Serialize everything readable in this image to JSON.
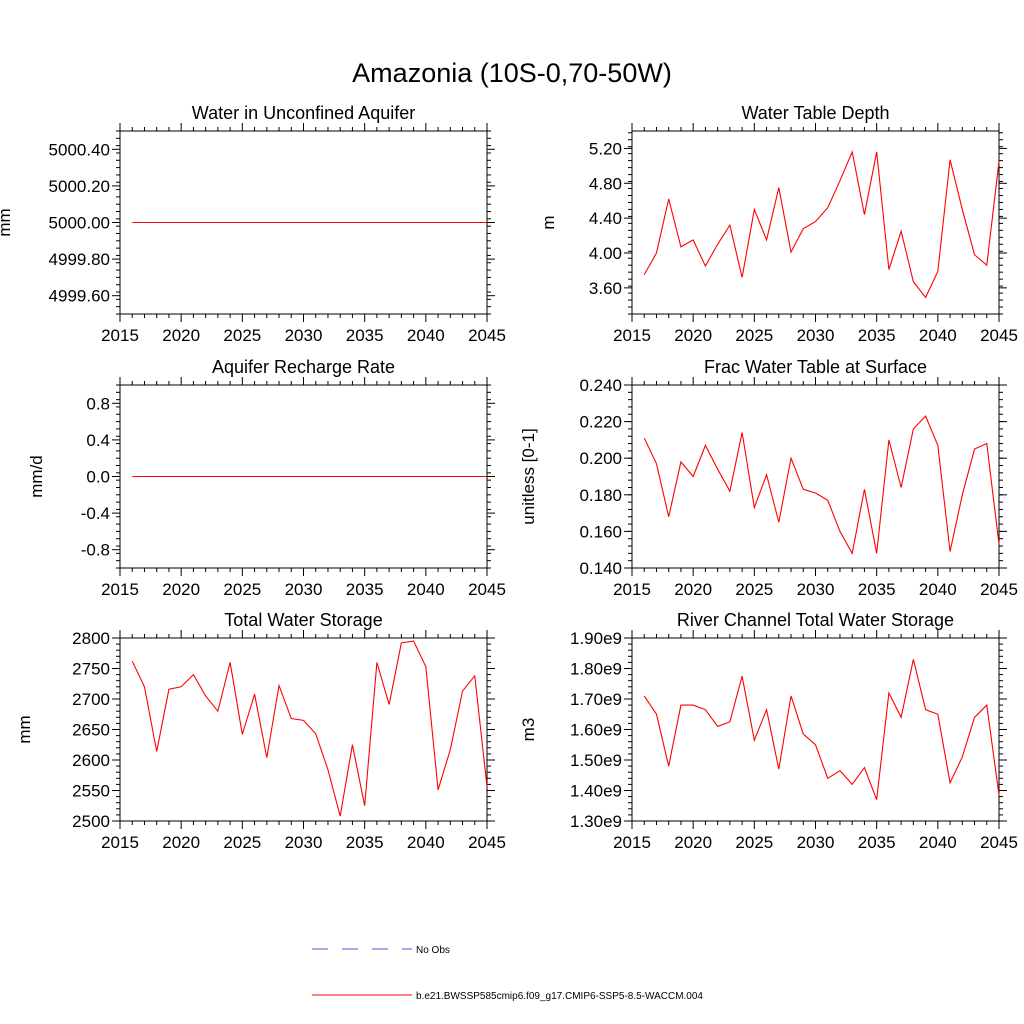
{
  "title": "Amazonia (10S-0,70-50W)",
  "colors": {
    "model": "#ff0000",
    "obs": "#4a5bd4",
    "axis": "#000000"
  },
  "legend": {
    "obs_label": "No Obs",
    "model_label": "b.e21.BWSSP585cmip6.f09_g17.CMIP6-SSP5-8.5-WACCM.004"
  },
  "chart_data": [
    {
      "type": "line",
      "title": "Water in Unconfined Aquifer",
      "ylabel": "mm",
      "xlim": [
        2015,
        2045
      ],
      "ylim": [
        4999.5,
        5000.5
      ],
      "xticks": [
        2015,
        2020,
        2025,
        2030,
        2035,
        2040,
        2045
      ],
      "xtick_labels": [
        "2015",
        "2020",
        "2025",
        "2030",
        "2035",
        "2040",
        "2045"
      ],
      "yticks": [
        4999.6,
        4999.8,
        5000.0,
        5000.2,
        5000.4
      ],
      "ytick_labels": [
        "4999.60",
        "4999.80",
        "5000.00",
        "5000.20",
        "5000.40"
      ],
      "x": [
        2016,
        2045
      ],
      "series": [
        {
          "name": "b.e21.BWSSP585cmip6.f09_g17.CMIP6-SSP5-8.5-WACCM.004",
          "values": [
            5000.0,
            5000.0
          ]
        }
      ]
    },
    {
      "type": "line",
      "title": "Water Table Depth",
      "ylabel": "m",
      "xlim": [
        2015,
        2045
      ],
      "ylim": [
        3.3,
        5.4
      ],
      "xticks": [
        2015,
        2020,
        2025,
        2030,
        2035,
        2040,
        2045
      ],
      "xtick_labels": [
        "2015",
        "2020",
        "2025",
        "2030",
        "2035",
        "2040",
        "2045"
      ],
      "yticks": [
        3.6,
        4.0,
        4.4,
        4.8,
        5.2
      ],
      "ytick_labels": [
        "3.60",
        "4.00",
        "4.40",
        "4.80",
        "5.20"
      ],
      "x": [
        2016,
        2017,
        2018,
        2019,
        2020,
        2021,
        2022,
        2023,
        2024,
        2025,
        2026,
        2027,
        2028,
        2029,
        2030,
        2031,
        2032,
        2033,
        2034,
        2035,
        2036,
        2037,
        2038,
        2039,
        2040,
        2041,
        2042,
        2043,
        2044,
        2045
      ],
      "series": [
        {
          "name": "b.e21.BWSSP585cmip6.f09_g17.CMIP6-SSP5-8.5-WACCM.004",
          "values": [
            3.75,
            4.0,
            4.62,
            4.07,
            4.15,
            3.85,
            4.1,
            4.32,
            3.72,
            4.5,
            4.15,
            4.75,
            4.01,
            4.28,
            4.36,
            4.52,
            4.83,
            5.16,
            4.44,
            5.16,
            3.81,
            4.25,
            3.67,
            3.49,
            3.79,
            5.07,
            4.5,
            3.98,
            3.86,
            5.05
          ]
        }
      ]
    },
    {
      "type": "line",
      "title": "Aquifer Recharge Rate",
      "ylabel": "mm/d",
      "xlim": [
        2015,
        2045
      ],
      "ylim": [
        -1.0,
        1.0
      ],
      "xticks": [
        2015,
        2020,
        2025,
        2030,
        2035,
        2040,
        2045
      ],
      "xtick_labels": [
        "2015",
        "2020",
        "2025",
        "2030",
        "2035",
        "2040",
        "2045"
      ],
      "yticks": [
        -0.8,
        -0.4,
        0.0,
        0.4,
        0.8
      ],
      "ytick_labels": [
        "-0.8",
        "-0.4",
        "0.0",
        "0.4",
        "0.8"
      ],
      "x": [
        2016,
        2045
      ],
      "series": [
        {
          "name": "b.e21.BWSSP585cmip6.f09_g17.CMIP6-SSP5-8.5-WACCM.004",
          "values": [
            0.0,
            0.0
          ]
        }
      ]
    },
    {
      "type": "line",
      "title": "Frac Water Table at Surface",
      "ylabel": "unitless [0-1]",
      "xlim": [
        2015,
        2045
      ],
      "ylim": [
        0.14,
        0.24
      ],
      "xticks": [
        2015,
        2020,
        2025,
        2030,
        2035,
        2040,
        2045
      ],
      "xtick_labels": [
        "2015",
        "2020",
        "2025",
        "2030",
        "2035",
        "2040",
        "2045"
      ],
      "yticks": [
        0.14,
        0.16,
        0.18,
        0.2,
        0.22,
        0.24
      ],
      "ytick_labels": [
        "0.140",
        "0.160",
        "0.180",
        "0.200",
        "0.220",
        "0.240"
      ],
      "x": [
        2016,
        2017,
        2018,
        2019,
        2020,
        2021,
        2022,
        2023,
        2024,
        2025,
        2026,
        2027,
        2028,
        2029,
        2030,
        2031,
        2032,
        2033,
        2034,
        2035,
        2036,
        2037,
        2038,
        2039,
        2040,
        2041,
        2042,
        2043,
        2044,
        2045
      ],
      "series": [
        {
          "name": "b.e21.BWSSP585cmip6.f09_g17.CMIP6-SSP5-8.5-WACCM.004",
          "values": [
            0.211,
            0.197,
            0.168,
            0.198,
            0.19,
            0.207,
            0.194,
            0.182,
            0.214,
            0.173,
            0.191,
            0.165,
            0.2,
            0.183,
            0.181,
            0.177,
            0.16,
            0.148,
            0.183,
            0.148,
            0.21,
            0.184,
            0.216,
            0.223,
            0.207,
            0.149,
            0.18,
            0.205,
            0.208,
            0.153
          ]
        }
      ]
    },
    {
      "type": "line",
      "title": "Total Water Storage",
      "ylabel": "mm",
      "xlim": [
        2015,
        2045
      ],
      "ylim": [
        2500,
        2800
      ],
      "xticks": [
        2015,
        2020,
        2025,
        2030,
        2035,
        2040,
        2045
      ],
      "xtick_labels": [
        "2015",
        "2020",
        "2025",
        "2030",
        "2035",
        "2040",
        "2045"
      ],
      "yticks": [
        2500,
        2550,
        2600,
        2650,
        2700,
        2750,
        2800
      ],
      "ytick_labels": [
        "2500",
        "2550",
        "2600",
        "2650",
        "2700",
        "2750",
        "2800"
      ],
      "x": [
        2016,
        2017,
        2018,
        2019,
        2020,
        2021,
        2022,
        2023,
        2024,
        2025,
        2026,
        2027,
        2028,
        2029,
        2030,
        2031,
        2032,
        2033,
        2034,
        2035,
        2036,
        2037,
        2038,
        2039,
        2040,
        2041,
        2042,
        2043,
        2044,
        2045
      ],
      "series": [
        {
          "name": "b.e21.BWSSP585cmip6.f09_g17.CMIP6-SSP5-8.5-WACCM.004",
          "values": [
            2762,
            2720,
            2614,
            2716,
            2720,
            2740,
            2705,
            2680,
            2760,
            2642,
            2708,
            2604,
            2722,
            2668,
            2665,
            2643,
            2584,
            2508,
            2625,
            2525,
            2760,
            2691,
            2792,
            2795,
            2753,
            2551,
            2617,
            2713,
            2738,
            2556
          ]
        }
      ]
    },
    {
      "type": "line",
      "title": "River Channel Total Water Storage",
      "ylabel": "m3",
      "xlim": [
        2015,
        2045
      ],
      "ylim": [
        1300000000.0,
        1900000000.0
      ],
      "xticks": [
        2015,
        2020,
        2025,
        2030,
        2035,
        2040,
        2045
      ],
      "xtick_labels": [
        "2015",
        "2020",
        "2025",
        "2030",
        "2035",
        "2040",
        "2045"
      ],
      "yticks": [
        1300000000.0,
        1400000000.0,
        1500000000.0,
        1600000000.0,
        1700000000.0,
        1800000000.0,
        1900000000.0
      ],
      "ytick_labels": [
        "1.30e9",
        "1.40e9",
        "1.50e9",
        "1.60e9",
        "1.70e9",
        "1.80e9",
        "1.90e9"
      ],
      "x": [
        2016,
        2017,
        2018,
        2019,
        2020,
        2021,
        2022,
        2023,
        2024,
        2025,
        2026,
        2027,
        2028,
        2029,
        2030,
        2031,
        2032,
        2033,
        2034,
        2035,
        2036,
        2037,
        2038,
        2039,
        2040,
        2041,
        2042,
        2043,
        2044,
        2045
      ],
      "series": [
        {
          "name": "b.e21.BWSSP585cmip6.f09_g17.CMIP6-SSP5-8.5-WACCM.004",
          "values": [
            1710000000.0,
            1650000000.0,
            1480000000.0,
            1680000000.0,
            1680000000.0,
            1665000000.0,
            1610000000.0,
            1625000000.0,
            1775000000.0,
            1565000000.0,
            1665000000.0,
            1470000000.0,
            1710000000.0,
            1585000000.0,
            1550000000.0,
            1440000000.0,
            1465000000.0,
            1420000000.0,
            1475000000.0,
            1370000000.0,
            1720000000.0,
            1640000000.0,
            1830000000.0,
            1665000000.0,
            1650000000.0,
            1425000000.0,
            1510000000.0,
            1640000000.0,
            1680000000.0,
            1385000000.0
          ]
        }
      ]
    }
  ]
}
